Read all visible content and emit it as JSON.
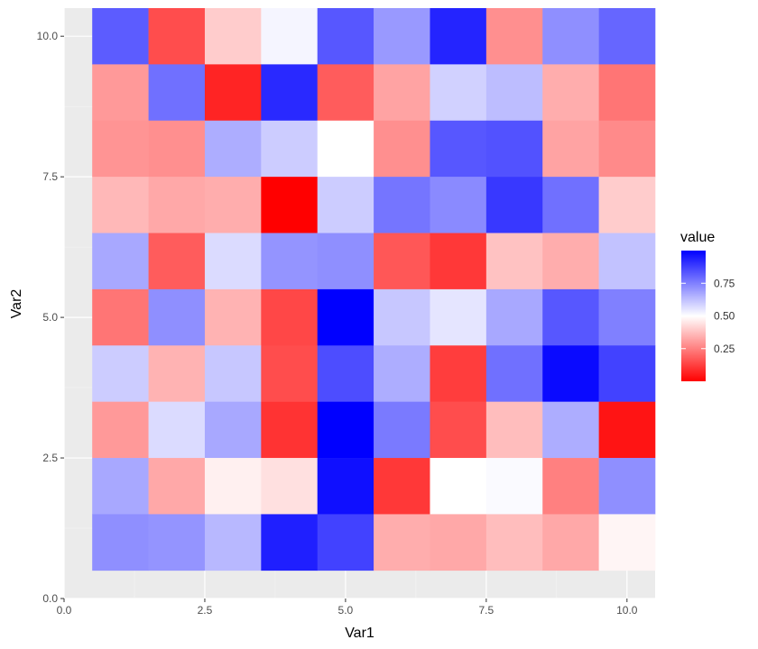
{
  "chart_data": {
    "type": "heatmap",
    "xlabel": "Var1",
    "ylabel": "Var2",
    "xlim": [
      0,
      10.5
    ],
    "ylim": [
      0,
      10.5
    ],
    "x_ticks": [
      0.0,
      2.5,
      5.0,
      7.5,
      10.0
    ],
    "x_tick_labels": [
      "0.0",
      "2.5",
      "5.0",
      "7.5",
      "10.0"
    ],
    "y_ticks": [
      0.0,
      2.5,
      5.0,
      7.5,
      10.0
    ],
    "y_tick_labels": [
      "0.0",
      "2.5",
      "5.0",
      "7.5",
      "10.0"
    ],
    "grid": true,
    "background": "#ebebeb",
    "rows_y": [
      10,
      9,
      8,
      7,
      6,
      5,
      4,
      3,
      2,
      1
    ],
    "columns_x": [
      1,
      2,
      3,
      4,
      5,
      6,
      7,
      8,
      9,
      10
    ],
    "z": [
      [
        0.82,
        0.15,
        0.4,
        0.52,
        0.83,
        0.7,
        0.93,
        0.28,
        0.72,
        0.8
      ],
      [
        0.3,
        0.78,
        0.07,
        0.92,
        0.18,
        0.32,
        0.59,
        0.63,
        0.34,
        0.23
      ],
      [
        0.29,
        0.28,
        0.66,
        0.6,
        0.5,
        0.28,
        0.83,
        0.84,
        0.32,
        0.27
      ],
      [
        0.36,
        0.33,
        0.34,
        0.0,
        0.6,
        0.77,
        0.73,
        0.89,
        0.78,
        0.4
      ],
      [
        0.67,
        0.18,
        0.57,
        0.71,
        0.72,
        0.17,
        0.11,
        0.38,
        0.34,
        0.62
      ],
      [
        0.23,
        0.72,
        0.35,
        0.14,
        1.0,
        0.61,
        0.55,
        0.67,
        0.83,
        0.75
      ],
      [
        0.6,
        0.35,
        0.61,
        0.15,
        0.85,
        0.66,
        0.12,
        0.78,
        0.98,
        0.87
      ],
      [
        0.3,
        0.57,
        0.67,
        0.1,
        1.0,
        0.76,
        0.15,
        0.37,
        0.66,
        0.04
      ],
      [
        0.67,
        0.33,
        0.47,
        0.44,
        0.97,
        0.11,
        0.5,
        0.51,
        0.25,
        0.72
      ],
      [
        0.72,
        0.71,
        0.64,
        0.94,
        0.87,
        0.34,
        0.33,
        0.37,
        0.33,
        0.48
      ]
    ],
    "legend": {
      "title": "value",
      "placement": "right",
      "range": [
        0.0,
        1.0
      ],
      "breaks": [
        0.25,
        0.5,
        0.75
      ],
      "break_labels": [
        "0.25",
        "0.50",
        "0.75"
      ],
      "low_color": "#ff0000",
      "mid_color": "#ffffff",
      "high_color": "#0000ff",
      "midpoint": 0.5
    }
  }
}
